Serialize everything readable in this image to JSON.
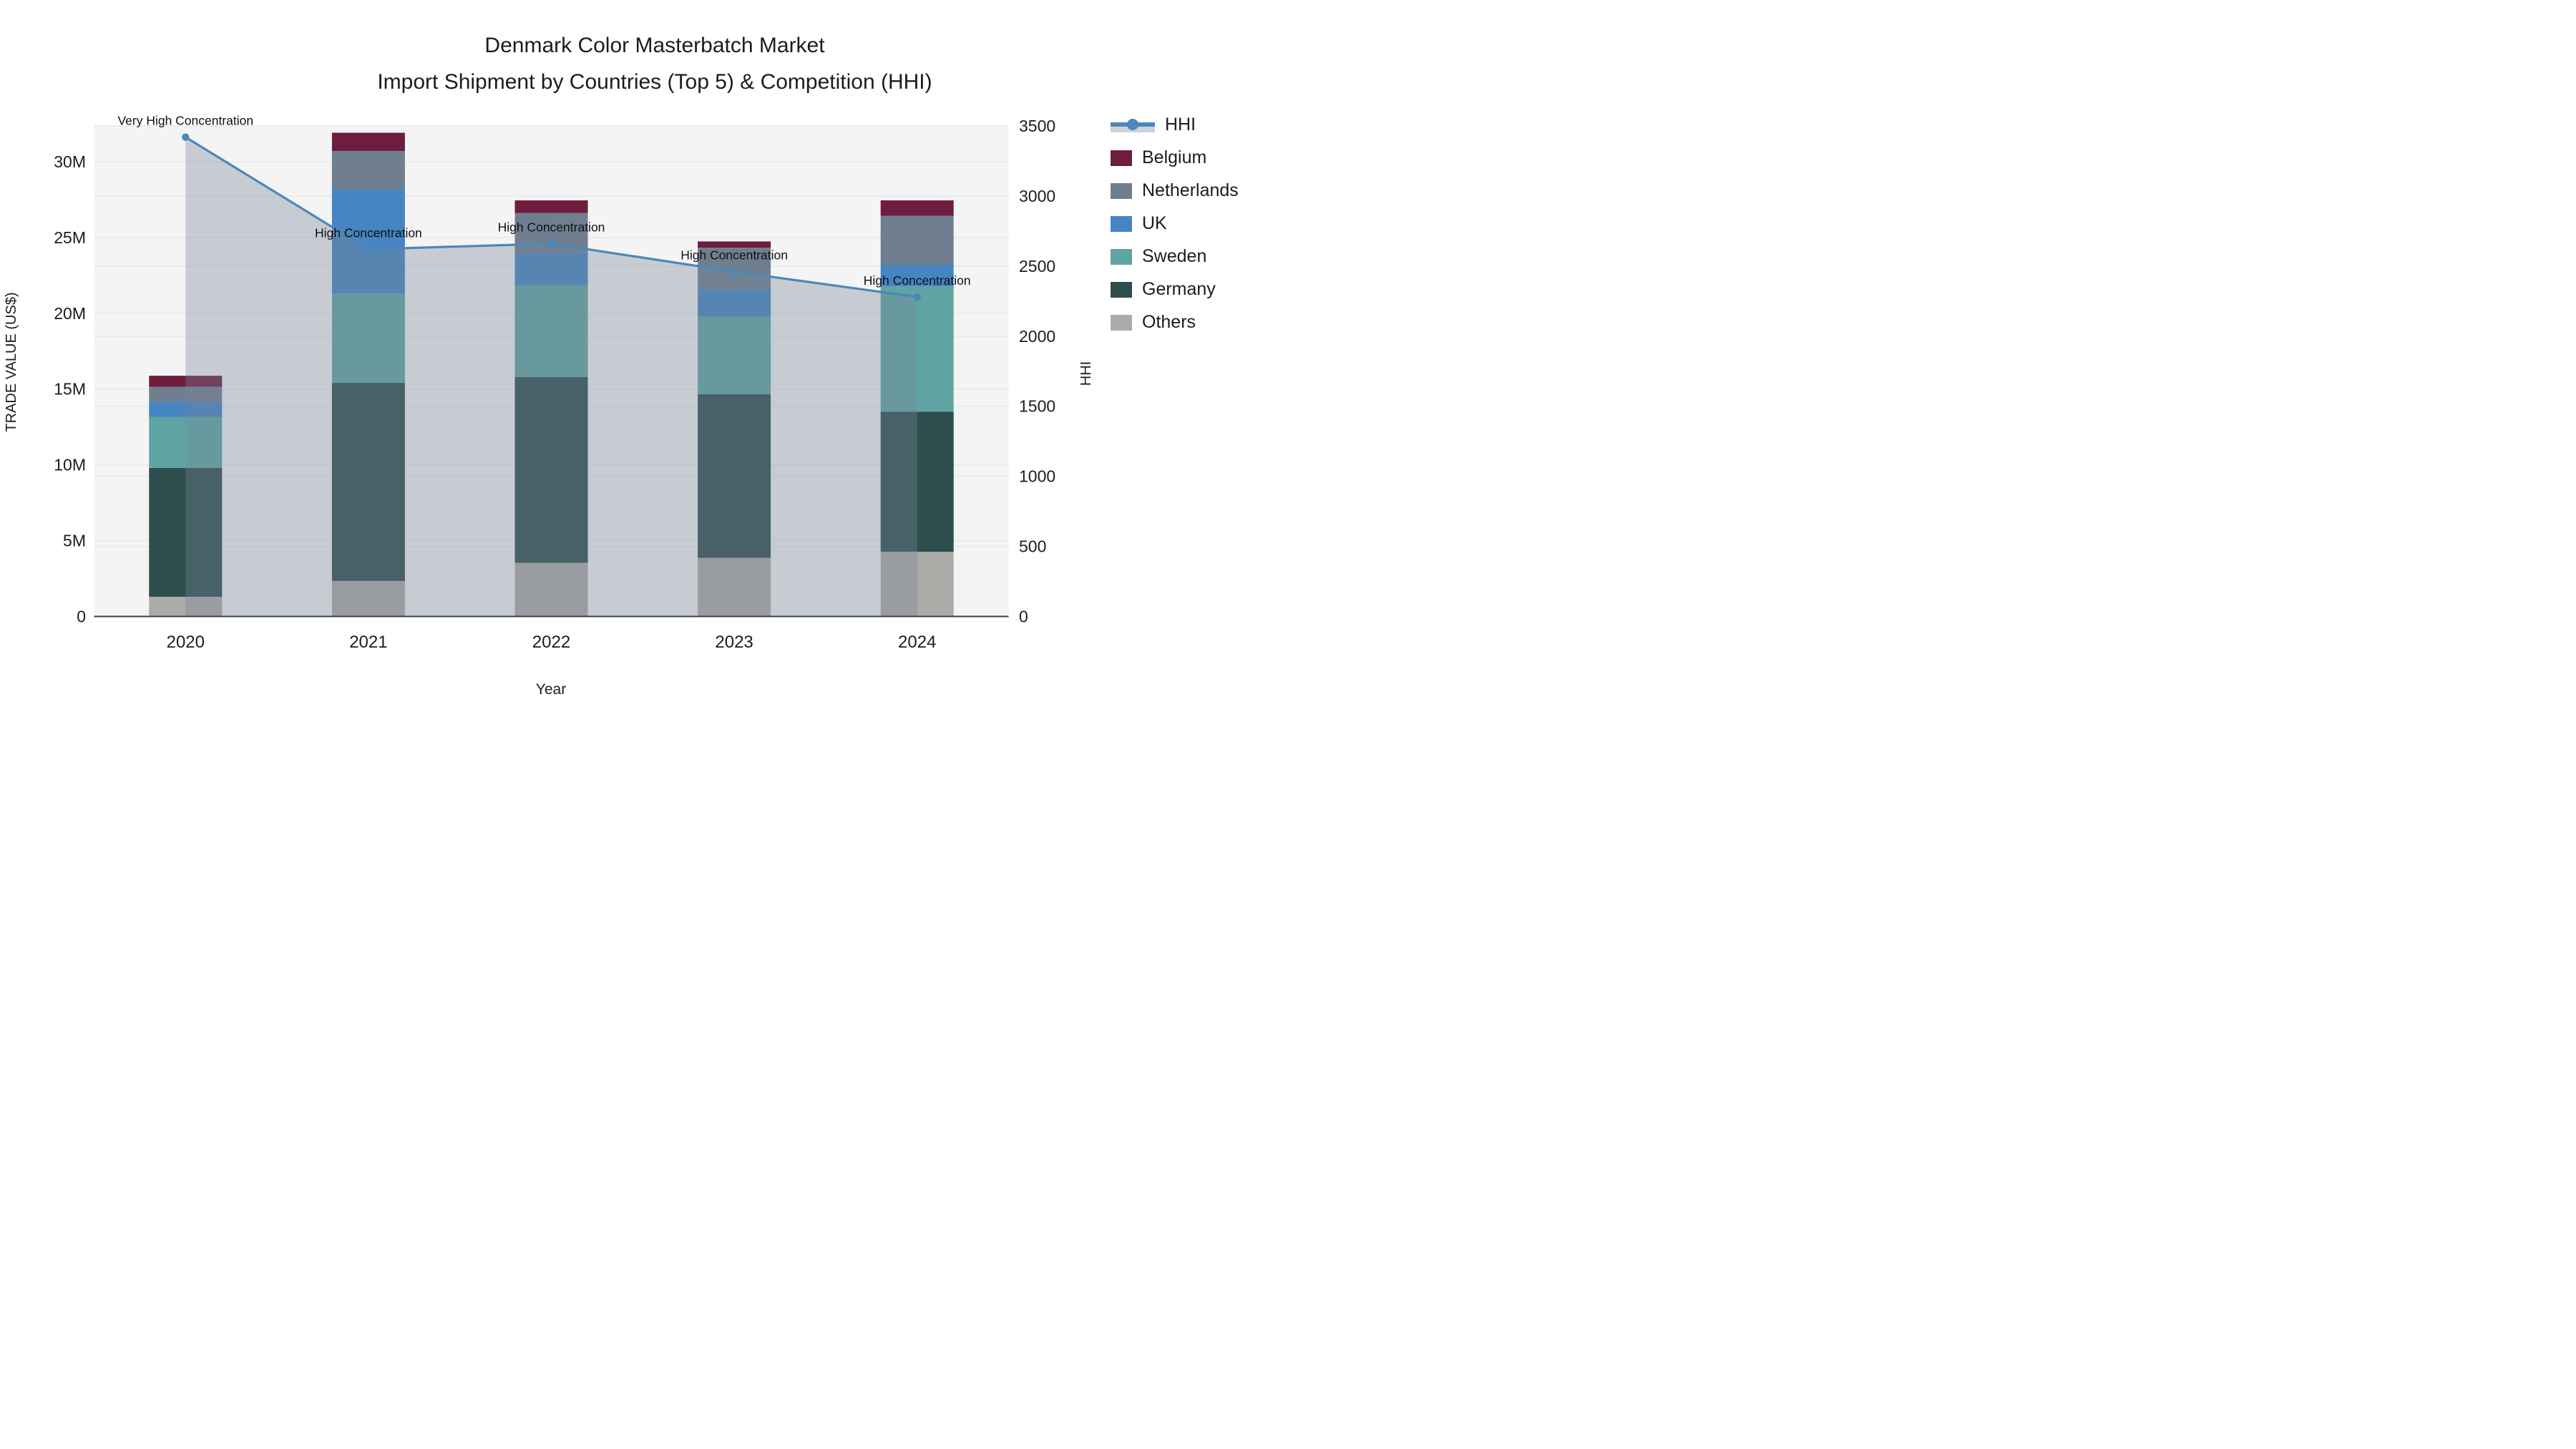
{
  "title": {
    "line1": "Denmark Color Masterbatch Market",
    "line2": "Import Shipment by Countries (Top 5) & Competition (HHI)"
  },
  "axes": {
    "x": {
      "label": "Year",
      "categories": [
        "2020",
        "2021",
        "2022",
        "2023",
        "2024"
      ]
    },
    "left": {
      "label": "TRADE VALUE (US$)",
      "tick_labels": [
        "0",
        "5M",
        "10M",
        "15M",
        "20M",
        "25M",
        "30M"
      ],
      "tick_values": [
        0,
        5,
        10,
        15,
        20,
        25,
        30
      ],
      "max_value": 32.36,
      "units": "millions US$"
    },
    "right": {
      "label": "HHI",
      "tick_labels": [
        "0",
        "500",
        "1000",
        "1500",
        "2000",
        "2500",
        "3000",
        "3500"
      ],
      "tick_values": [
        0,
        500,
        1000,
        1500,
        2000,
        2500,
        3000,
        3500
      ],
      "max_value": 3500
    }
  },
  "chart_data": {
    "type": [
      "bar",
      "line"
    ],
    "title": "Denmark Color Masterbatch Market — Import Shipment by Countries (Top 5) & Competition (HHI)",
    "xlabel": "Year",
    "ylabel_left": "TRADE VALUE (US$)",
    "ylabel_right": "HHI",
    "categories": [
      "2020",
      "2021",
      "2022",
      "2023",
      "2024"
    ],
    "bar_mode": "stacked",
    "stack_bottom_to_top": [
      "Others",
      "Germany",
      "Sweden",
      "UK",
      "Netherlands",
      "Belgium"
    ],
    "series": [
      {
        "name": "Belgium",
        "color": "#6e1d3e",
        "values_musd": [
          0.73,
          1.2,
          0.83,
          0.41,
          1.02
        ]
      },
      {
        "name": "Netherlands",
        "color": "#6f7f8f",
        "values_musd": [
          0.99,
          2.53,
          2.64,
          2.76,
          3.23
        ]
      },
      {
        "name": "UK",
        "color": "#4585c1",
        "values_musd": [
          0.99,
          6.87,
          2.12,
          1.79,
          1.42
        ]
      },
      {
        "name": "Sweden",
        "color": "#5ea4a2",
        "values_musd": [
          3.37,
          5.9,
          6.07,
          5.12,
          8.28
        ]
      },
      {
        "name": "Germany",
        "color": "#2e4d4d",
        "values_musd": [
          8.5,
          13.07,
          12.25,
          10.79,
          9.23
        ]
      },
      {
        "name": "Others",
        "color": "#acaba8",
        "values_musd": [
          1.3,
          2.34,
          3.54,
          3.87,
          4.27
        ]
      }
    ],
    "bar_totals_musd": [
      15.88,
      31.91,
      27.45,
      24.74,
      27.45
    ],
    "hhi_line": {
      "name": "HHI",
      "color": "#4c87b9",
      "fill_color": "rgba(118,134,152,0.36)",
      "values": [
        3420,
        2620,
        2660,
        2460,
        2280
      ]
    },
    "annotations": [
      {
        "x": "2020",
        "text": "Very High Concentration"
      },
      {
        "x": "2021",
        "text": "High Concentration"
      },
      {
        "x": "2022",
        "text": "High Concentration"
      },
      {
        "x": "2023",
        "text": "High Concentration"
      },
      {
        "x": "2024",
        "text": "High Concentration"
      }
    ],
    "axis_ranges": {
      "left_musd": [
        0,
        32.36
      ],
      "right_hhi": [
        0,
        3500
      ]
    },
    "grid": true,
    "legend_position": "right"
  },
  "legend": {
    "items": [
      {
        "label": "HHI",
        "type": "line",
        "color": "#4c87b9",
        "band_color": "#ccd3dd"
      },
      {
        "label": "Belgium",
        "type": "box",
        "color": "#6e1d3e"
      },
      {
        "label": "Netherlands",
        "type": "box",
        "color": "#6f7f8f"
      },
      {
        "label": "UK",
        "type": "box",
        "color": "#4585c1"
      },
      {
        "label": "Sweden",
        "type": "box",
        "color": "#5ea4a2"
      },
      {
        "label": "Germany",
        "type": "box",
        "color": "#2e4d4d"
      },
      {
        "label": "Others",
        "type": "box",
        "color": "#acaba8"
      }
    ]
  },
  "style_colors": {
    "plot_background": "#f4f4f4",
    "gridline": "#e7e7e7",
    "axis_line": "#404040",
    "text": "#1c1c1c"
  }
}
